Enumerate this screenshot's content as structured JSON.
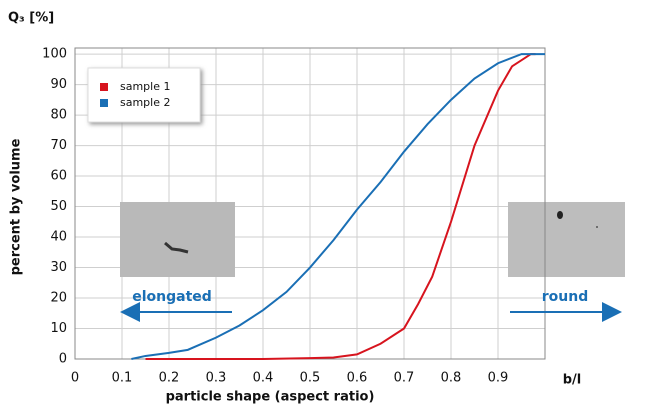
{
  "chart_data": {
    "type": "line",
    "title": "Q₃ [%]",
    "x_label": "particle shape (aspect ratio)",
    "x_unit_label": "b/l",
    "y_label": "percent by volume",
    "xlim": [
      0,
      1
    ],
    "xticks": [
      0,
      0.1,
      0.2,
      0.3,
      0.4,
      0.5,
      0.6,
      0.7,
      0.8,
      0.9
    ],
    "ylim": [
      0,
      102
    ],
    "yticks": [
      0,
      10,
      20,
      30,
      40,
      50,
      60,
      70,
      80,
      90,
      100
    ],
    "grid": true,
    "legend": "upper left",
    "annotations": [
      "elongated",
      "round"
    ],
    "series": [
      {
        "name": "sample 1",
        "color": "#d7141e",
        "x": [
          0.15,
          0.3,
          0.4,
          0.5,
          0.55,
          0.6,
          0.65,
          0.7,
          0.73,
          0.76,
          0.8,
          0.85,
          0.9,
          0.93,
          0.97,
          0.98
        ],
        "values": [
          0,
          0,
          0,
          0.3,
          0.5,
          1.5,
          5,
          10,
          18,
          27,
          45,
          70,
          88,
          96,
          100,
          100
        ]
      },
      {
        "name": "sample 2",
        "color": "#1a6fb5",
        "x": [
          0.12,
          0.15,
          0.2,
          0.24,
          0.3,
          0.35,
          0.4,
          0.45,
          0.5,
          0.55,
          0.6,
          0.65,
          0.7,
          0.75,
          0.8,
          0.85,
          0.9,
          0.95,
          1.0
        ],
        "values": [
          0,
          1,
          2,
          3,
          7,
          11,
          16,
          22,
          30,
          39,
          49,
          58,
          68,
          77,
          85,
          92,
          97,
          100,
          100
        ]
      }
    ]
  }
}
